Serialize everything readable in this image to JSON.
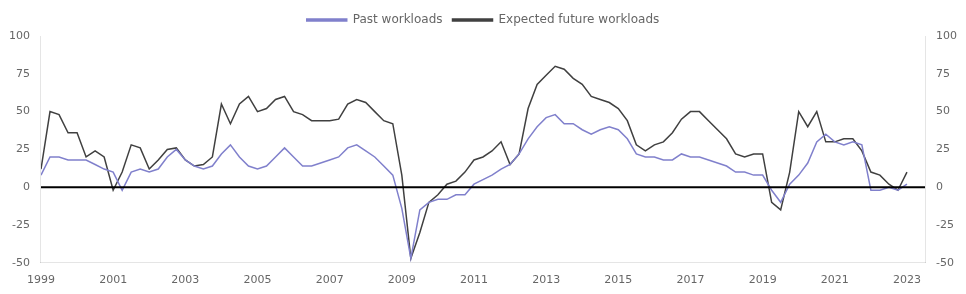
{
  "chart_data": {
    "type": "line",
    "x": [
      1999,
      1999.25,
      1999.5,
      1999.75,
      2000,
      2000.25,
      2000.5,
      2000.75,
      2001,
      2001.25,
      2001.5,
      2001.75,
      2002,
      2002.25,
      2002.5,
      2002.75,
      2003,
      2003.25,
      2003.5,
      2003.75,
      2004,
      2004.25,
      2004.5,
      2004.75,
      2005,
      2005.25,
      2005.5,
      2005.75,
      2006,
      2006.25,
      2006.5,
      2006.75,
      2007,
      2007.25,
      2007.5,
      2007.75,
      2008,
      2008.25,
      2008.5,
      2008.75,
      2009,
      2009.25,
      2009.5,
      2009.75,
      2010,
      2010.25,
      2010.5,
      2010.75,
      2011,
      2011.25,
      2011.5,
      2011.75,
      2012,
      2012.25,
      2012.5,
      2012.75,
      2013,
      2013.25,
      2013.5,
      2013.75,
      2014,
      2014.25,
      2014.5,
      2014.75,
      2015,
      2015.25,
      2015.5,
      2015.75,
      2016,
      2016.25,
      2016.5,
      2016.75,
      2017,
      2017.25,
      2017.5,
      2017.75,
      2018,
      2018.25,
      2018.5,
      2018.75,
      2019,
      2019.25,
      2019.5,
      2019.75,
      2020,
      2020.25,
      2020.5,
      2020.75,
      2021,
      2021.25,
      2021.5,
      2021.75,
      2022,
      2022.25,
      2022.5,
      2022.75,
      2023
    ],
    "series": [
      {
        "name": "Past workloads",
        "color": "#8080CC",
        "values": [
          8,
          20,
          20,
          18,
          18,
          18,
          15,
          12,
          10,
          -2,
          10,
          12,
          10,
          12,
          20,
          25,
          18,
          14,
          12,
          14,
          22,
          28,
          20,
          14,
          12,
          14,
          20,
          26,
          20,
          14,
          14,
          16,
          18,
          20,
          26,
          28,
          24,
          20,
          14,
          8,
          -14,
          -47,
          -15,
          -10,
          -8,
          -8,
          -5,
          -5,
          2,
          5,
          8,
          12,
          15,
          22,
          32,
          40,
          46,
          48,
          42,
          42,
          38,
          35,
          38,
          40,
          38,
          32,
          22,
          20,
          20,
          18,
          18,
          22,
          20,
          20,
          18,
          16,
          14,
          10,
          10,
          8,
          8,
          -2,
          -10,
          2,
          8,
          16,
          30,
          35,
          30,
          28,
          30,
          28,
          -2,
          -2,
          0,
          -2,
          2
        ]
      },
      {
        "name": "Expected future workloads",
        "color": "#404040",
        "values": [
          12,
          50,
          48,
          36,
          36,
          20,
          24,
          20,
          -2,
          10,
          28,
          26,
          12,
          18,
          25,
          26,
          18,
          14,
          15,
          20,
          55,
          42,
          55,
          60,
          50,
          52,
          58,
          60,
          50,
          48,
          44,
          44,
          44,
          45,
          55,
          58,
          56,
          50,
          44,
          42,
          8,
          -47,
          -30,
          -10,
          -5,
          2,
          4,
          10,
          18,
          20,
          24,
          30,
          15,
          22,
          52,
          68,
          74,
          80,
          78,
          72,
          68,
          60,
          58,
          56,
          52,
          44,
          28,
          24,
          28,
          30,
          36,
          45,
          50,
          50,
          44,
          38,
          32,
          22,
          20,
          22,
          22,
          -10,
          -15,
          10,
          50,
          40,
          50,
          30,
          30,
          32,
          32,
          24,
          10,
          8,
          2,
          -2,
          10
        ]
      }
    ],
    "xlim": [
      1999,
      2023.5
    ],
    "xticks": [
      1999,
      2001,
      2003,
      2005,
      2007,
      2009,
      2011,
      2013,
      2015,
      2017,
      2019,
      2021,
      2023
    ],
    "ylim": [
      -50,
      100
    ],
    "yticks": [
      -50,
      -25,
      0,
      25,
      50,
      75,
      100
    ],
    "y2lim": [
      -50,
      100
    ],
    "y2ticks": [
      -50,
      -25,
      0,
      25,
      50,
      75,
      100
    ],
    "grid": false,
    "legend": "top"
  }
}
